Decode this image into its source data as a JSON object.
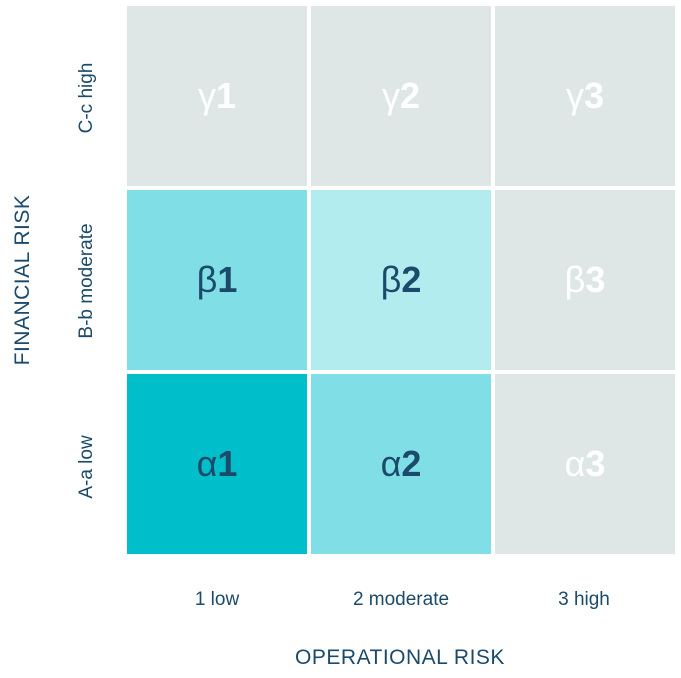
{
  "axes": {
    "y_title": "FINANCIAL RISK",
    "x_title": "OPERATIONAL RISK"
  },
  "rows": [
    {
      "label": "C-c high"
    },
    {
      "label": "B-b moderate"
    },
    {
      "label": "A-a low"
    }
  ],
  "columns": [
    {
      "label": "1 low"
    },
    {
      "label": "2 moderate"
    },
    {
      "label": "3 high"
    }
  ],
  "cells": {
    "g1": {
      "greek": "γ",
      "num": "1"
    },
    "g2": {
      "greek": "γ",
      "num": "2"
    },
    "g3": {
      "greek": "γ",
      "num": "3"
    },
    "b1": {
      "greek": "β",
      "num": "1"
    },
    "b2": {
      "greek": "β",
      "num": "2"
    },
    "b3": {
      "greek": "β",
      "num": "3"
    },
    "a1": {
      "greek": "α",
      "num": "1"
    },
    "a2": {
      "greek": "α",
      "num": "2"
    },
    "a3": {
      "greek": "α",
      "num": "3"
    }
  },
  "colors": {
    "grey": "#dfe6e6",
    "light": "#b2ecef",
    "mid": "#80dfe6",
    "dark": "#00bfca",
    "text": "#1b4a6b"
  }
}
